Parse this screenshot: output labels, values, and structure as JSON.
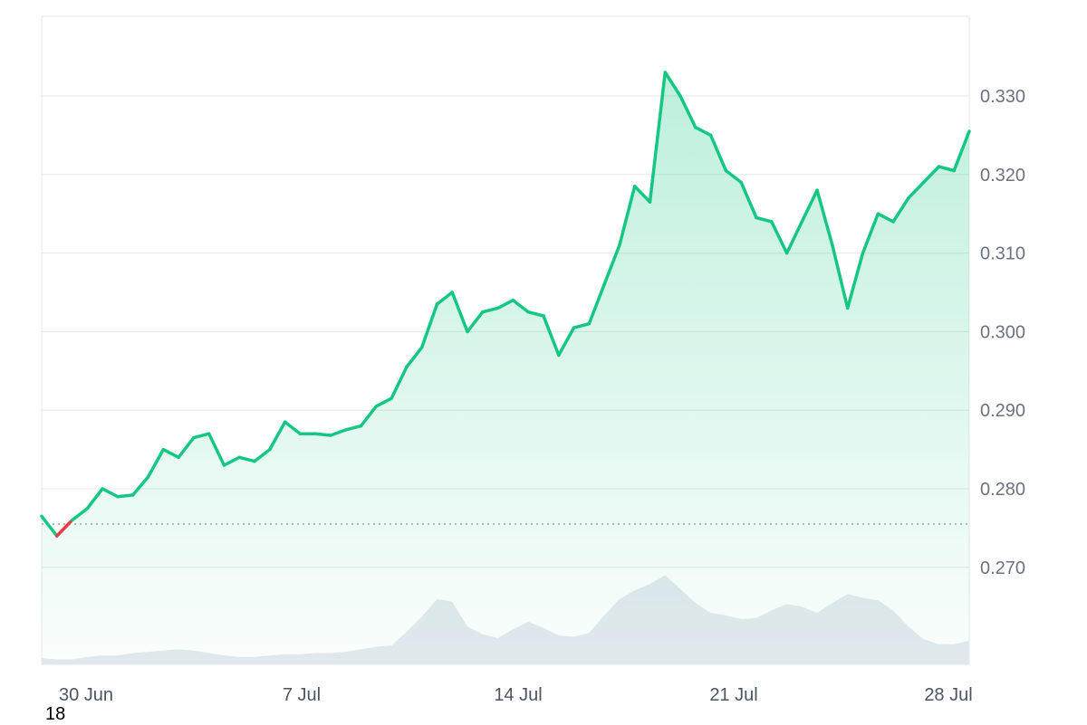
{
  "chart_data": {
    "type": "area",
    "title": "",
    "xlabel": "",
    "ylabel": "",
    "x_range": [
      "29 Jun",
      "28 Jul"
    ],
    "ylim": [
      0.26,
      0.34
    ],
    "y_ticks": [
      "0.330",
      "0.320",
      "0.310",
      "0.300",
      "0.290",
      "0.280",
      "0.270"
    ],
    "x_ticks": [
      "30 Jun",
      "7 Jul",
      "14 Jul",
      "21 Jul",
      "28 Jul"
    ],
    "baseline": 0.2755,
    "grid": "horizontal",
    "colors": {
      "up": "#16c784",
      "down": "#ea3943",
      "volume": "#e5e9ef",
      "grid": "#e5e7eb"
    },
    "series": [
      {
        "x": [
          "29 Jun 12:00",
          "29 Jun 18:00",
          "30 Jun 00:00",
          "30 Jun 12:00",
          "1 Jul 00:00",
          "1 Jul 12:00",
          "2 Jul 00:00",
          "2 Jul 12:00",
          "3 Jul 00:00",
          "3 Jul 12:00",
          "4 Jul 00:00",
          "4 Jul 12:00",
          "5 Jul 00:00",
          "5 Jul 12:00",
          "6 Jul 00:00",
          "6 Jul 12:00",
          "7 Jul 00:00",
          "7 Jul 12:00",
          "8 Jul 00:00",
          "8 Jul 12:00",
          "9 Jul 00:00",
          "9 Jul 12:00",
          "10 Jul 00:00",
          "10 Jul 12:00",
          "11 Jul 00:00",
          "11 Jul 12:00",
          "12 Jul 00:00",
          "12 Jul 12:00",
          "13 Jul 00:00",
          "13 Jul 12:00",
          "14 Jul 00:00",
          "14 Jul 12:00",
          "15 Jul 00:00",
          "15 Jul 12:00",
          "16 Jul 00:00",
          "16 Jul 12:00",
          "17 Jul 00:00",
          "17 Jul 12:00",
          "18 Jul 00:00",
          "18 Jul 06:00",
          "18 Jul 12:00",
          "18 Jul 18:00",
          "19 Jul 00:00",
          "19 Jul 12:00",
          "20 Jul 00:00",
          "20 Jul 12:00",
          "21 Jul 00:00",
          "21 Jul 12:00",
          "22 Jul 00:00",
          "22 Jul 12:00",
          "23 Jul 00:00",
          "23 Jul 12:00",
          "24 Jul 00:00",
          "24 Jul 12:00",
          "25 Jul 00:00",
          "25 Jul 12:00",
          "26 Jul 00:00",
          "26 Jul 12:00",
          "27 Jul 00:00",
          "27 Jul 12:00",
          "28 Jul 00:00",
          "28 Jul 12:00"
        ],
        "y": [
          0.2765,
          0.274,
          0.276,
          0.2775,
          0.28,
          0.279,
          0.2792,
          0.2815,
          0.285,
          0.284,
          0.2865,
          0.287,
          0.283,
          0.284,
          0.2835,
          0.285,
          0.2885,
          0.287,
          0.287,
          0.2868,
          0.2875,
          0.288,
          0.2905,
          0.2915,
          0.2955,
          0.298,
          0.3035,
          0.305,
          0.3,
          0.3025,
          0.303,
          0.304,
          0.3025,
          0.302,
          0.297,
          0.3005,
          0.301,
          0.306,
          0.311,
          0.3185,
          0.3165,
          0.333,
          0.33,
          0.326,
          0.325,
          0.3205,
          0.319,
          0.3145,
          0.314,
          0.31,
          0.314,
          0.318,
          0.311,
          0.303,
          0.31,
          0.315,
          0.314,
          0.317,
          0.319,
          0.321,
          0.3205,
          0.3255
        ]
      }
    ],
    "volume": [
      0.5,
      0.4,
      0.4,
      0.6,
      0.7,
      0.7,
      0.9,
      1.0,
      1.1,
      1.2,
      1.1,
      0.9,
      0.7,
      0.6,
      0.6,
      0.7,
      0.8,
      0.8,
      0.9,
      0.9,
      1.0,
      1.2,
      1.4,
      1.5,
      2.6,
      3.8,
      5.2,
      5.0,
      3.0,
      2.4,
      2.1,
      2.8,
      3.4,
      2.9,
      2.3,
      2.2,
      2.5,
      3.9,
      5.2,
      5.9,
      6.4,
      7.1,
      6.0,
      4.9,
      4.1,
      3.9,
      3.6,
      3.7,
      4.3,
      4.8,
      4.6,
      4.1,
      4.9,
      5.6,
      5.3,
      5.1,
      4.3,
      3.0,
      2.0,
      1.6,
      1.6,
      1.9
    ]
  }
}
